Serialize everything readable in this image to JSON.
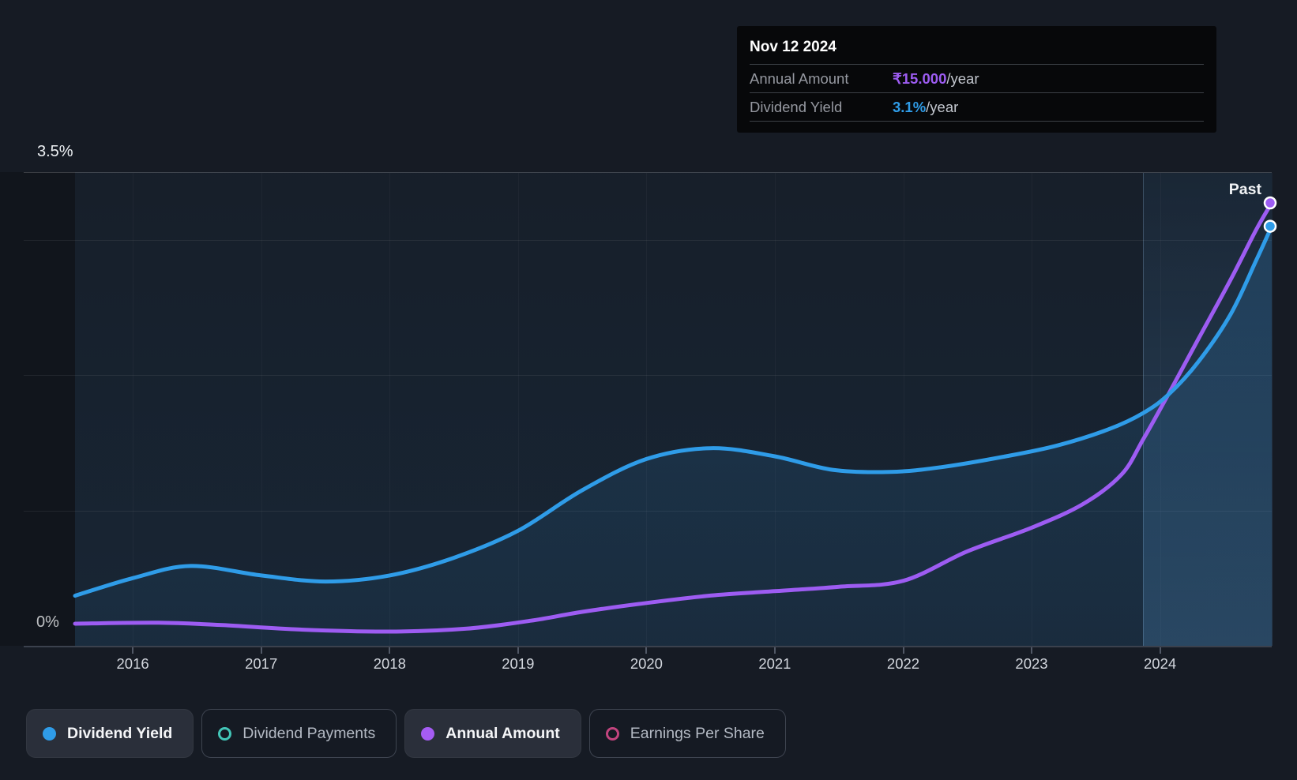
{
  "tooltip": {
    "date": "Nov 12 2024",
    "rows": [
      {
        "label": "Annual Amount",
        "value": "₹15.000",
        "unit": "/year",
        "color": "#9d5cf2"
      },
      {
        "label": "Dividend Yield",
        "value": "3.1%",
        "unit": "/year",
        "color": "#2f9ce8"
      }
    ]
  },
  "axis": {
    "y_top_label": "3.5%",
    "y_zero_label": "0%",
    "x_ticks": [
      2016,
      2017,
      2018,
      2019,
      2020,
      2021,
      2022,
      2023,
      2024
    ]
  },
  "past_label": "Past",
  "legend": [
    {
      "label": "Dividend Yield",
      "color": "#2f9ce8",
      "filled": true,
      "active": true
    },
    {
      "label": "Dividend Payments",
      "color": "#43c6b8",
      "filled": false,
      "active": false
    },
    {
      "label": "Annual Amount",
      "color": "#a55cf3",
      "filled": true,
      "active": true
    },
    {
      "label": "Earnings Per Share",
      "color": "#c2447e",
      "filled": false,
      "active": false
    }
  ],
  "chart_data": {
    "type": "line",
    "title": "Dividend history",
    "x_range": [
      2015.55,
      2024.87
    ],
    "divider_x": 2023.87,
    "grid_y_percent": [
      1,
      2,
      3
    ],
    "legend_position": "bottom",
    "series": [
      {
        "name": "Dividend Yield",
        "unit": "%",
        "color": "#2f9ce8",
        "ylim": [
          0,
          3.5
        ],
        "fill": true,
        "points": [
          [
            2015.55,
            0.37
          ],
          [
            2016.0,
            0.5
          ],
          [
            2016.45,
            0.59
          ],
          [
            2017.0,
            0.52
          ],
          [
            2017.5,
            0.475
          ],
          [
            2018.0,
            0.52
          ],
          [
            2018.5,
            0.65
          ],
          [
            2019.0,
            0.85
          ],
          [
            2019.5,
            1.15
          ],
          [
            2020.0,
            1.38
          ],
          [
            2020.5,
            1.46
          ],
          [
            2021.0,
            1.4
          ],
          [
            2021.45,
            1.3
          ],
          [
            2021.9,
            1.285
          ],
          [
            2022.3,
            1.32
          ],
          [
            2022.8,
            1.4
          ],
          [
            2023.2,
            1.48
          ],
          [
            2023.6,
            1.6
          ],
          [
            2023.87,
            1.72
          ],
          [
            2024.07,
            1.86
          ],
          [
            2024.3,
            2.1
          ],
          [
            2024.55,
            2.45
          ],
          [
            2024.75,
            2.85
          ],
          [
            2024.87,
            3.1
          ]
        ],
        "end_value": "3.1%"
      },
      {
        "name": "Annual Amount",
        "unit": "₹",
        "color": "#9d5cf2",
        "ylim": [
          0,
          15
        ],
        "fill": false,
        "points": [
          [
            2015.55,
            0.75
          ],
          [
            2016.2,
            0.78
          ],
          [
            2016.7,
            0.7
          ],
          [
            2017.3,
            0.55
          ],
          [
            2018.0,
            0.48
          ],
          [
            2018.6,
            0.58
          ],
          [
            2019.1,
            0.85
          ],
          [
            2019.5,
            1.15
          ],
          [
            2020.0,
            1.45
          ],
          [
            2020.5,
            1.7
          ],
          [
            2021.0,
            1.85
          ],
          [
            2021.5,
            2.0
          ],
          [
            2022.0,
            2.2
          ],
          [
            2022.5,
            3.2
          ],
          [
            2023.0,
            4.0
          ],
          [
            2023.4,
            4.8
          ],
          [
            2023.7,
            5.8
          ],
          [
            2023.87,
            7.0
          ],
          [
            2024.07,
            8.56
          ],
          [
            2024.3,
            10.4
          ],
          [
            2024.55,
            12.4
          ],
          [
            2024.75,
            14.1
          ],
          [
            2024.87,
            15.0
          ]
        ],
        "end_value": "₹15.000"
      }
    ]
  }
}
